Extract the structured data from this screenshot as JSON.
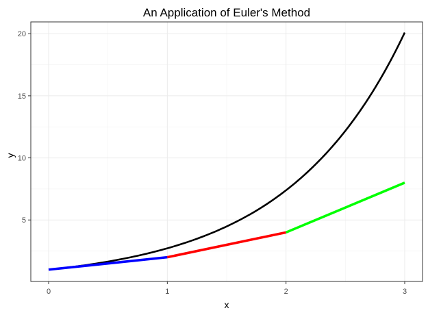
{
  "chart_data": {
    "type": "line",
    "title": "An Application of Euler's Method",
    "xlabel": "x",
    "ylabel": "y",
    "xlim": [
      -0.15,
      3.15
    ],
    "ylim": [
      0.05,
      20.95
    ],
    "x_ticks": [
      0,
      1,
      2,
      3
    ],
    "x_tick_labels": [
      "0",
      "1",
      "2",
      "3"
    ],
    "y_ticks": [
      5,
      10,
      15,
      20
    ],
    "y_tick_labels": [
      "5",
      "10",
      "15",
      "20"
    ],
    "grid": true,
    "legend": "none",
    "series": [
      {
        "color": "#000000",
        "x": [
          0,
          0.25,
          0.5,
          0.75,
          1,
          1.25,
          1.5,
          1.75,
          2,
          2.25,
          2.5,
          2.75,
          3
        ],
        "y": [
          1,
          1.28,
          1.65,
          2.12,
          2.72,
          3.49,
          4.48,
          5.75,
          7.39,
          9.49,
          12.18,
          15.64,
          20.09
        ]
      },
      {
        "color": "#0000ff",
        "x": [
          0,
          1
        ],
        "y": [
          1,
          2
        ]
      },
      {
        "color": "#ff0000",
        "x": [
          1,
          2
        ],
        "y": [
          2,
          4
        ]
      },
      {
        "color": "#00ff00",
        "x": [
          2,
          3
        ],
        "y": [
          4,
          8
        ]
      }
    ]
  }
}
